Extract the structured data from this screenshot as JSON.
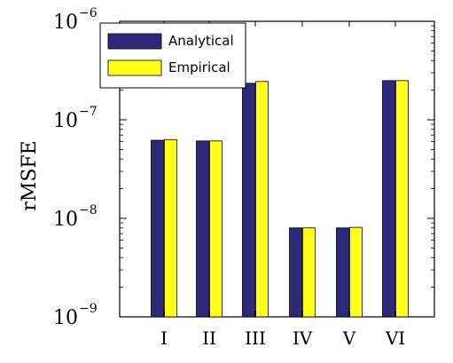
{
  "chart_data": {
    "type": "bar",
    "ylabel": "rMSFE",
    "xlabel": "",
    "yscale": "log",
    "ylim": [
      1e-09,
      1e-06
    ],
    "yticks": [
      {
        "base": "10",
        "exp": "−9",
        "value": 1e-09
      },
      {
        "base": "10",
        "exp": "−8",
        "value": 1e-08
      },
      {
        "base": "10",
        "exp": "−7",
        "value": 1e-07
      },
      {
        "base": "10",
        "exp": "−6",
        "value": 1e-06
      }
    ],
    "categories": [
      "I",
      "II",
      "III",
      "IV",
      "V",
      "VI"
    ],
    "series": [
      {
        "name": "Analytical",
        "color": "#2d2a7a",
        "values": [
          6.2e-08,
          6.1e-08,
          2.35e-07,
          8e-09,
          8e-09,
          2.5e-07
        ]
      },
      {
        "name": "Empirical",
        "color": "#ffff1a",
        "values": [
          6.3e-08,
          6.1e-08,
          2.45e-07,
          8e-09,
          8.1e-09,
          2.5e-07
        ]
      }
    ],
    "legend_position": "top-left",
    "grid": false
  }
}
